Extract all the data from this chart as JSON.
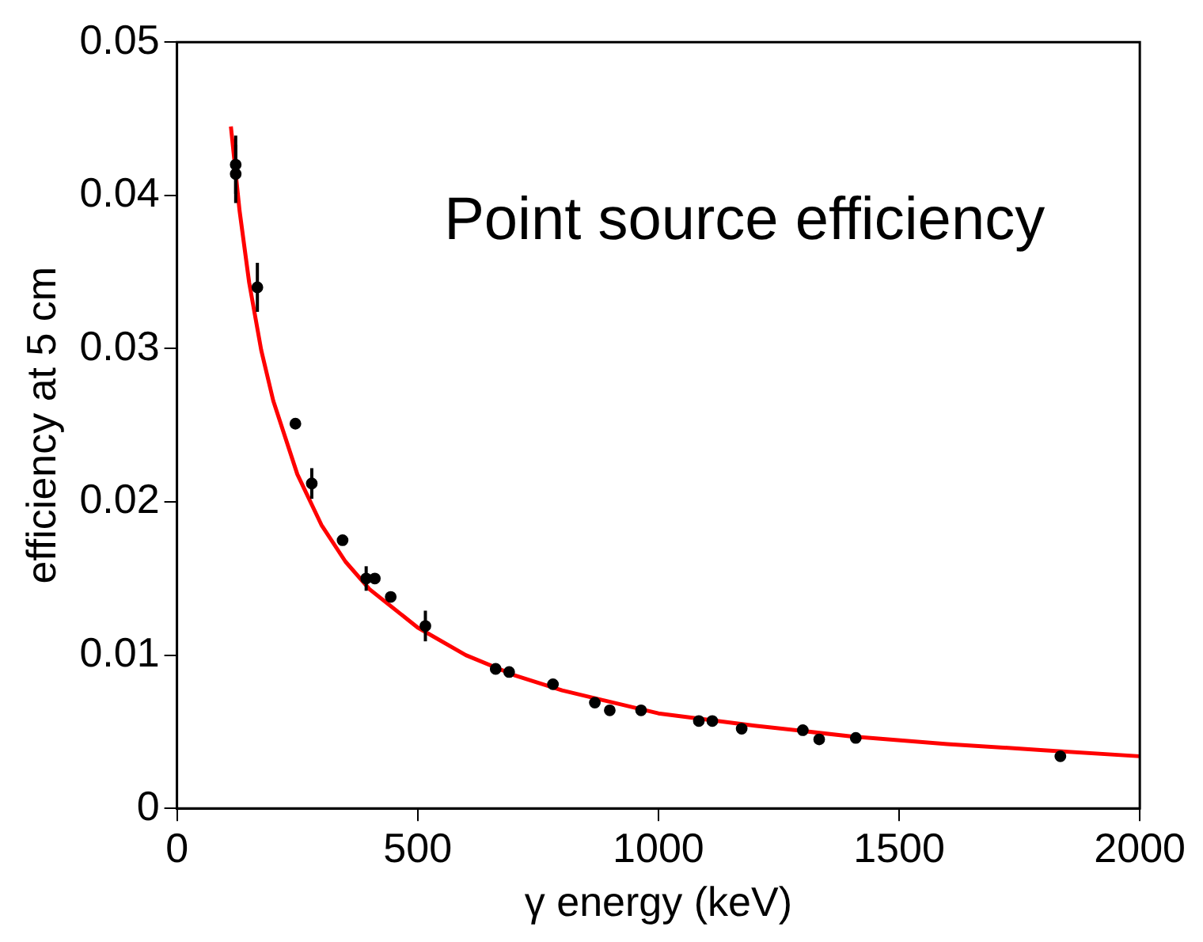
{
  "chart_data": {
    "type": "scatter",
    "xlabel": "γ energy (keV)",
    "ylabel": "efficiency at 5 cm",
    "annotations": [
      "Point source efficiency"
    ],
    "xlim": [
      0,
      2000
    ],
    "xticks": [
      0,
      500,
      1000,
      1500,
      2000
    ],
    "ylim": [
      0,
      0.05
    ],
    "yticks": [
      0,
      0.01,
      0.02,
      0.03,
      0.04,
      0.05
    ],
    "grid": false,
    "legend": false,
    "series": [
      {
        "marker": "circle",
        "color": "#000000",
        "x": [
          122,
          122,
          167,
          246,
          280,
          344,
          393,
          411,
          444,
          516,
          662,
          690,
          781,
          868,
          899,
          964,
          1084,
          1112,
          1173,
          1300,
          1334,
          1410,
          1835
        ],
        "values": [
          0.042,
          0.0414,
          0.034,
          0.0251,
          0.0212,
          0.0175,
          0.015,
          0.015,
          0.0138,
          0.0119,
          0.0091,
          0.0089,
          0.0081,
          0.0069,
          0.0064,
          0.0064,
          0.0057,
          0.0057,
          0.0052,
          0.0051,
          0.0045,
          0.0046,
          0.0034
        ],
        "errors": [
          0.0019,
          0.0019,
          0.0016,
          null,
          0.001,
          null,
          0.0008,
          null,
          null,
          0.001,
          null,
          null,
          null,
          null,
          null,
          null,
          null,
          null,
          null,
          null,
          null,
          null,
          null
        ]
      },
      {
        "type": "line",
        "marker": "none",
        "color": "#ff0000",
        "x": [
          112,
          130,
          150,
          175,
          200,
          250,
          300,
          350,
          400,
          500,
          600,
          700,
          800,
          1000,
          1200,
          1400,
          1600,
          1800,
          2000
        ],
        "values": [
          0.0445,
          0.039,
          0.0343,
          0.0299,
          0.0266,
          0.0218,
          0.0185,
          0.0161,
          0.0143,
          0.0118,
          0.01,
          0.0087,
          0.0077,
          0.0062,
          0.0054,
          0.0047,
          0.0042,
          0.0038,
          0.0034
        ]
      }
    ]
  }
}
